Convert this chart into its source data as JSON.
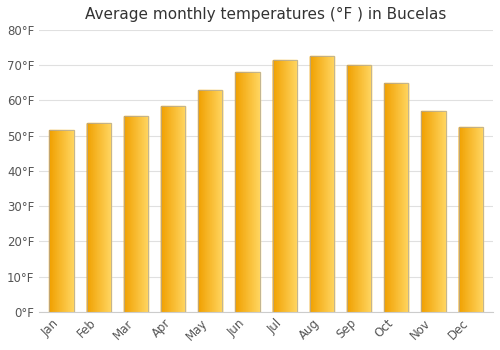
{
  "title": "Average monthly temperatures (°F ) in Bucelas",
  "months": [
    "Jan",
    "Feb",
    "Mar",
    "Apr",
    "May",
    "Jun",
    "Jul",
    "Aug",
    "Sep",
    "Oct",
    "Nov",
    "Dec"
  ],
  "values": [
    51.5,
    53.5,
    55.5,
    58.5,
    63.0,
    68.0,
    71.5,
    72.5,
    70.0,
    65.0,
    57.0,
    52.5
  ],
  "bar_color_left": "#F0A000",
  "bar_color_right": "#FFD060",
  "bar_edge_color": "#AAAAAA",
  "background_color": "#FFFFFF",
  "grid_color": "#E0E0E0",
  "ylim": [
    0,
    80
  ],
  "yticks": [
    0,
    10,
    20,
    30,
    40,
    50,
    60,
    70,
    80
  ],
  "ytick_labels": [
    "0°F",
    "10°F",
    "20°F",
    "30°F",
    "40°F",
    "50°F",
    "60°F",
    "70°F",
    "80°F"
  ],
  "title_fontsize": 11,
  "tick_fontsize": 8.5,
  "tick_color": "#555555",
  "spine_color": "#CCCCCC"
}
